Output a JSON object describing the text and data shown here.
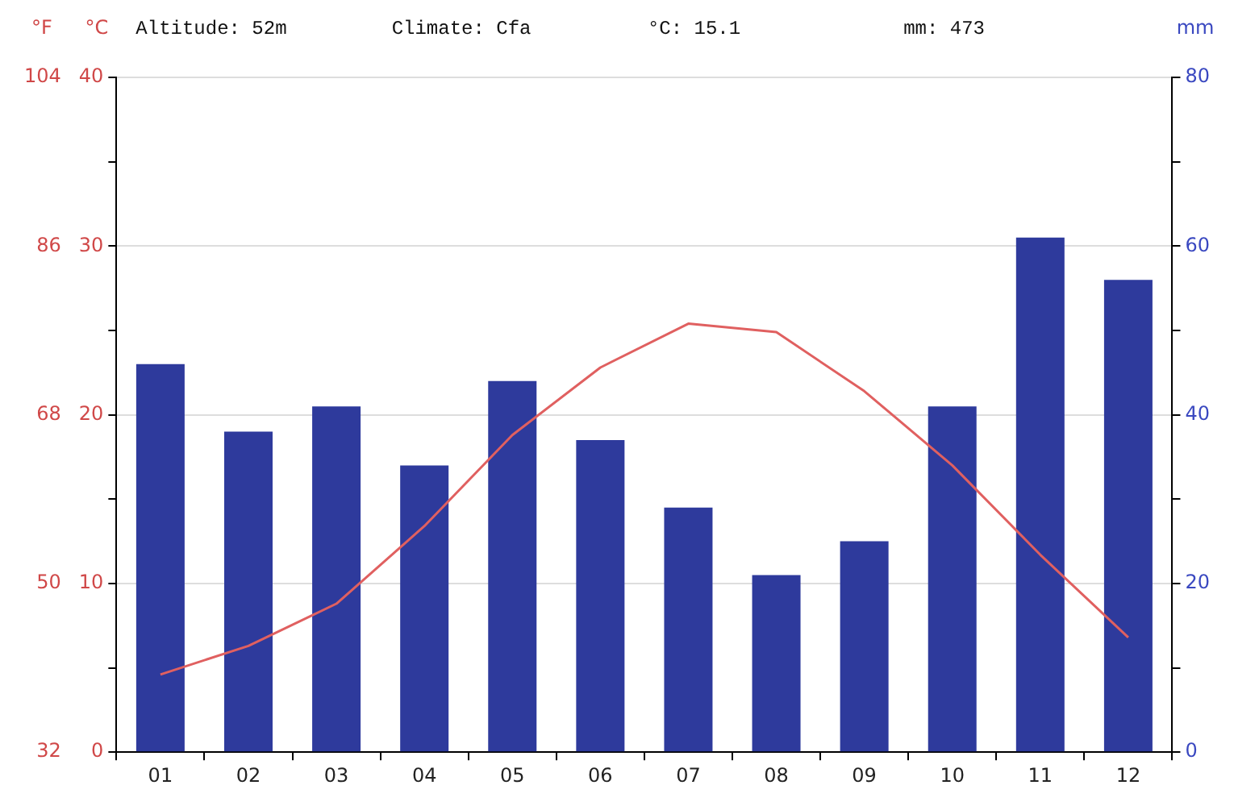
{
  "chart_data": {
    "type": "bar",
    "categories": [
      "01",
      "02",
      "03",
      "04",
      "05",
      "06",
      "07",
      "08",
      "09",
      "10",
      "11",
      "12"
    ],
    "annotations": [
      "Altitude: 52m",
      "Climate: Cfa",
      "°C: 15.1",
      "mm: 473"
    ],
    "ylabel": "°C",
    "y2label": "mm",
    "y3label": "°F",
    "series": [
      {
        "axis": "y2",
        "color": "#2e3a9c",
        "values": [
          46,
          38,
          41,
          34,
          44,
          37,
          29,
          21,
          25,
          41,
          61,
          56
        ]
      },
      {
        "type": "line",
        "axis": "y",
        "color": "#e06060",
        "values": [
          4.6,
          6.3,
          8.8,
          13.4,
          18.8,
          22.8,
          25.4,
          24.9,
          21.4,
          17.0,
          11.7,
          6.8
        ]
      }
    ],
    "ylim": [
      0,
      40
    ],
    "yticks": [
      0,
      {
        "value": 5,
        "label": null
      },
      10,
      {
        "value": 15,
        "label": null
      },
      20,
      {
        "value": 25,
        "label": null
      },
      30,
      {
        "value": 35,
        "label": null
      },
      40
    ],
    "y2lim": [
      0,
      80
    ],
    "y2ticks": [
      0,
      {
        "value": 10,
        "label": null
      },
      20,
      {
        "value": 30,
        "label": null
      },
      40,
      {
        "value": 50,
        "label": null
      },
      60,
      {
        "value": 70,
        "label": null
      },
      80
    ],
    "y3lim": [
      32,
      104
    ],
    "y3ticks": [
      32,
      50,
      68,
      86,
      104
    ],
    "grid": "y"
  }
}
